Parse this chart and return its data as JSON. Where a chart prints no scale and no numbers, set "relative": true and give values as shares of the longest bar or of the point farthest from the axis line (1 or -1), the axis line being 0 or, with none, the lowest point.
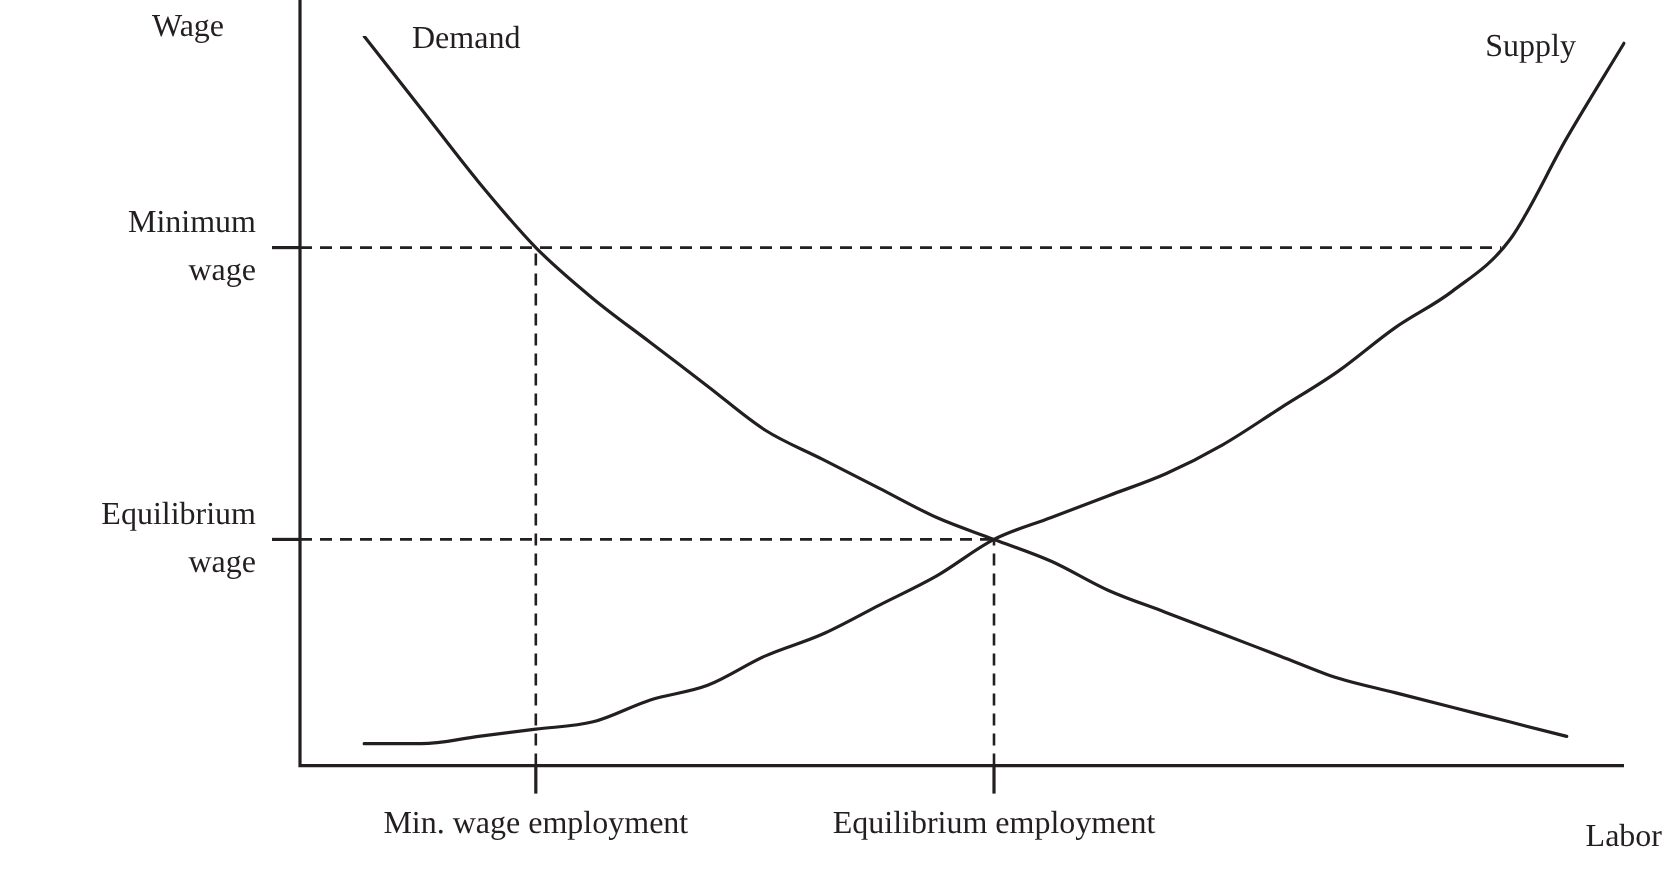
{
  "chart_data": {
    "type": "line",
    "relative": true,
    "xlabel": "Labor",
    "ylabel": "Wage",
    "categories": [
      null,
      null,
      null,
      "Min. wage employment",
      null,
      null,
      null,
      null,
      null,
      null,
      null,
      "Equilibrium employment",
      null,
      null,
      null,
      null,
      null,
      null,
      null,
      null,
      null,
      null,
      null
    ],
    "series": [
      {
        "name": "Demand",
        "color": "#231f20",
        "values": [
          1.0,
          0.9,
          0.8,
          0.71,
          0.64,
          0.58,
          0.52,
          0.46,
          0.42,
          0.38,
          0.34,
          0.31,
          0.28,
          0.24,
          0.21,
          0.18,
          0.15,
          0.12,
          0.1,
          0.08,
          0.06,
          0.04,
          null
        ]
      },
      {
        "name": "Supply",
        "color": "#231f20",
        "values": [
          0.03,
          0.03,
          0.04,
          0.05,
          0.06,
          0.09,
          0.11,
          0.15,
          0.18,
          0.22,
          0.26,
          0.31,
          0.34,
          0.37,
          0.4,
          0.44,
          0.49,
          0.54,
          0.6,
          0.65,
          0.72,
          0.86,
          0.99
        ]
      }
    ],
    "ref_lines": [
      {
        "axis": "y",
        "value": 0.71,
        "label": "Minimum wage",
        "line_style": "dashed",
        "color": "#231f20"
      },
      {
        "axis": "y",
        "value": 0.31,
        "label": "Equilibrium wage",
        "line_style": "dashed",
        "color": "#231f20"
      },
      {
        "axis": "x",
        "value": "Min. wage employment",
        "line_style": "dashed",
        "color": "#231f20"
      },
      {
        "axis": "x",
        "value": "Equilibrium employment",
        "line_style": "dashed",
        "color": "#231f20"
      }
    ],
    "legend": false,
    "grid": false,
    "marker": "none",
    "line_style": "solid"
  }
}
